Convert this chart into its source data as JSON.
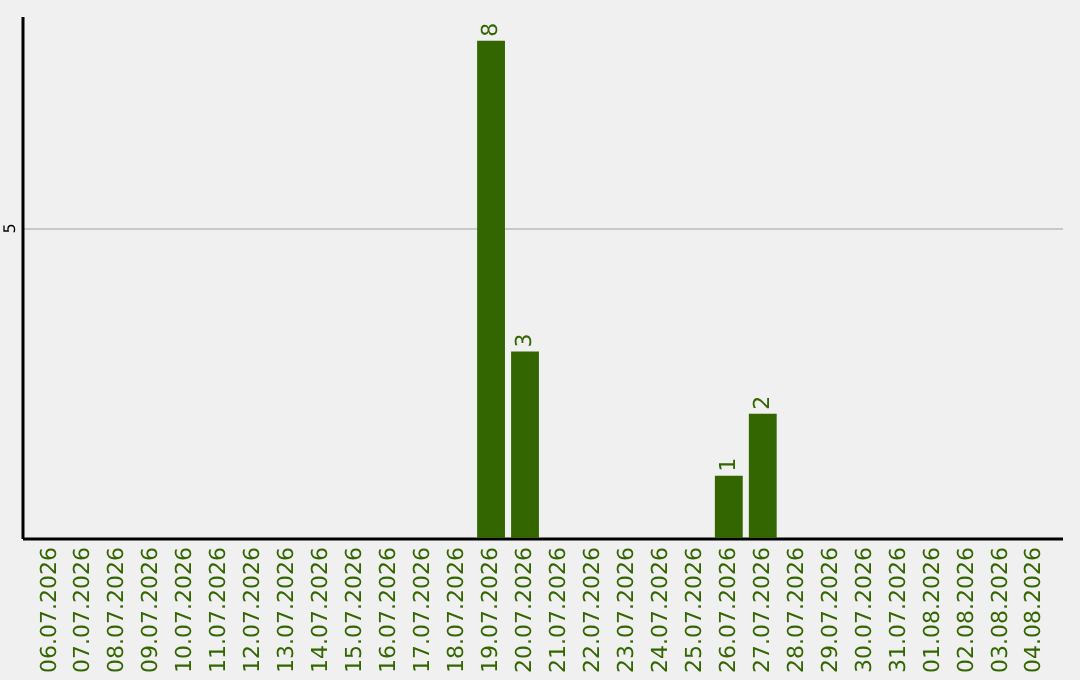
{
  "chart_data": {
    "type": "bar",
    "categories": [
      "06.07.2026",
      "07.07.2026",
      "08.07.2026",
      "09.07.2026",
      "10.07.2026",
      "11.07.2026",
      "12.07.2026",
      "13.07.2026",
      "14.07.2026",
      "15.07.2026",
      "16.07.2026",
      "17.07.2026",
      "18.07.2026",
      "19.07.2026",
      "20.07.2026",
      "21.07.2026",
      "22.07.2026",
      "23.07.2026",
      "24.07.2026",
      "25.07.2026",
      "26.07.2026",
      "27.07.2026",
      "28.07.2026",
      "29.07.2026",
      "30.07.2026",
      "31.07.2026",
      "01.08.2026",
      "02.08.2026",
      "03.08.2026",
      "04.08.2026"
    ],
    "values": [
      null,
      null,
      null,
      null,
      null,
      null,
      null,
      null,
      null,
      null,
      null,
      null,
      null,
      8,
      3,
      null,
      null,
      null,
      null,
      null,
      1,
      2,
      null,
      null,
      null,
      null,
      null,
      null,
      null,
      null
    ],
    "value_labels": [
      null,
      null,
      null,
      null,
      null,
      null,
      null,
      null,
      null,
      null,
      null,
      null,
      null,
      "8",
      "3",
      null,
      null,
      null,
      null,
      null,
      "1",
      "2",
      null,
      null,
      null,
      null,
      null,
      null,
      null,
      null
    ],
    "color": "#336600",
    "ylim": [
      0,
      8.4
    ],
    "yticks": [
      5
    ],
    "grid": "y"
  }
}
